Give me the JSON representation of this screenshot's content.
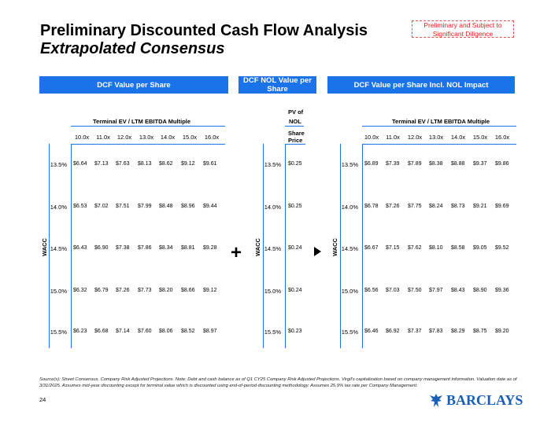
{
  "header": {
    "title": "Preliminary Discounted Cash Flow Analysis",
    "subtitle": "Extrapolated Consensus",
    "draft_notice": "Preliminary and Subject to Significant Diligence"
  },
  "colors": {
    "accent": "#1a73e8",
    "brand": "#1a5fb4",
    "draft": "#e02020"
  },
  "sections": {
    "dcf_per_share": "DCF Value per Share",
    "nol_value": "DCF NOL Value per Share",
    "dcf_incl_nol": "DCF Value per Share Incl. NOL Impact"
  },
  "multiple_header": "Terminal EV / LTM EBITDA Multiple",
  "multiples": [
    "10.0x",
    "11.0x",
    "12.0x",
    "13.0x",
    "14.0x",
    "15.0x",
    "16.0x"
  ],
  "wacc_label": "WACC",
  "wacc_rates": [
    "13.5%",
    "14.0%",
    "14.5%",
    "15.0%",
    "15.5%"
  ],
  "nol_header": {
    "line1": "PV of",
    "line2": "NOL",
    "line3": "Share",
    "line4": "Price"
  },
  "table1": [
    [
      "$6.64",
      "$7.13",
      "$7.63",
      "$8.13",
      "$8.62",
      "$9.12",
      "$9.61"
    ],
    [
      "$6.53",
      "$7.02",
      "$7.51",
      "$7.99",
      "$8.48",
      "$8.96",
      "$9.44"
    ],
    [
      "$6.43",
      "$6.90",
      "$7.38",
      "$7.86",
      "$8.34",
      "$8.81",
      "$9.28"
    ],
    [
      "$6.32",
      "$6.79",
      "$7.26",
      "$7.73",
      "$8.20",
      "$8.66",
      "$9.12"
    ],
    [
      "$6.23",
      "$6.68",
      "$7.14",
      "$7.60",
      "$8.06",
      "$8.52",
      "$8.97"
    ]
  ],
  "table2": [
    "$0.25",
    "$0.25",
    "$0.24",
    "$0.24",
    "$0.23"
  ],
  "table3": [
    [
      "$6.89",
      "$7.39",
      "$7.89",
      "$8.38",
      "$8.88",
      "$9.37",
      "$9.86"
    ],
    [
      "$6.78",
      "$7.26",
      "$7.75",
      "$8.24",
      "$8.73",
      "$9.21",
      "$9.69"
    ],
    [
      "$6.67",
      "$7.15",
      "$7.62",
      "$8.10",
      "$8.58",
      "$9.05",
      "$9.52"
    ],
    [
      "$6.56",
      "$7.03",
      "$7.50",
      "$7.97",
      "$8.43",
      "$8.90",
      "$9.36"
    ],
    [
      "$6.46",
      "$6.92",
      "$7.37",
      "$7.83",
      "$8.29",
      "$8.75",
      "$9.20"
    ]
  ],
  "operators": {
    "plus": "+"
  },
  "footer": {
    "sources": "Source(s): Street Consensus, Company Risk Adjusted Projections. Note: Debt and cash balance as of Q1 CY25 Company Risk Adjusted Projections. Virgil's capitalization based on company management information. Valuation date as of 3/31/2025. Assumes mid-year discounting except for terminal value which is discounted using end-of-period discounting methodology. Assumes 25.9% tax rate per Company Management.",
    "page_number": "24",
    "brand": "BARCLAYS"
  }
}
